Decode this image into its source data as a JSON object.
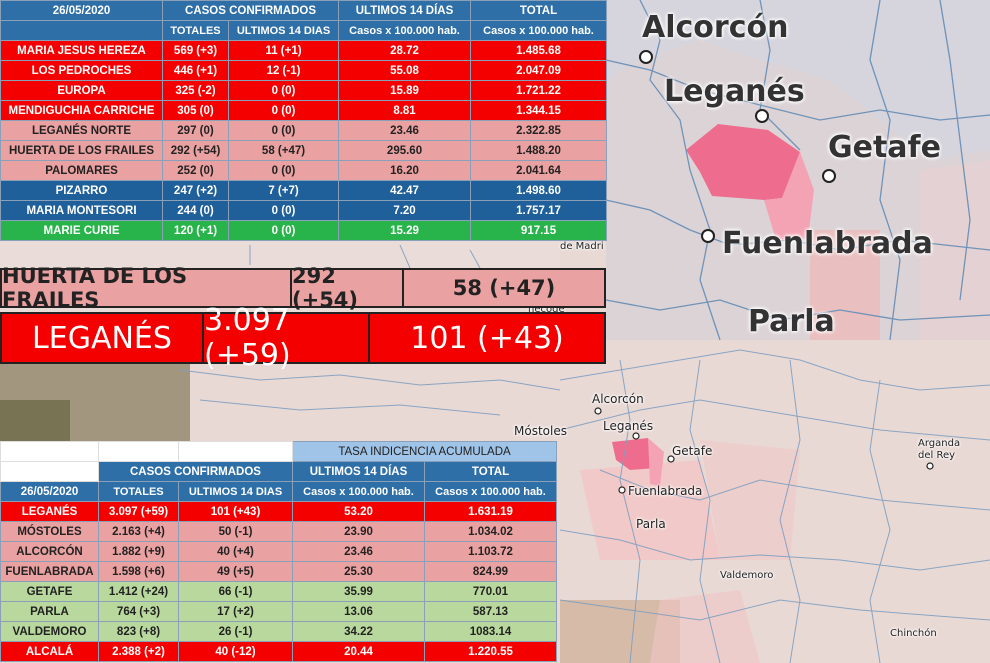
{
  "map_labels": {
    "alcorcon_big": "Alcorcón",
    "leganes_big": "Leganés",
    "getafe_big": "Getafe",
    "fuenlabrada_big": "Fuenlabrada",
    "parla_big": "Parla",
    "alcorcon": "Alcorcón",
    "leganes": "Leganés",
    "mostoles": "Móstoles",
    "getafe": "Getafe",
    "fuenlabrada": "Fuenlabrada",
    "parla": "Parla",
    "arganda": "Arganda del Rey",
    "valdemoro": "Valdemoro",
    "chinchon": "Chinchón",
    "madrid_fragment": "de Madri",
    "partial_fragment": "necode"
  },
  "top_table": {
    "date": "26/05/2020",
    "group1": "CASOS CONFIRMADOS",
    "group2": "ULTIMOS 14 DÍAS",
    "group3": "TOTAL",
    "sub1": "TOTALES",
    "sub2": "ULTIMOS 14 DIAS",
    "sub3": "Casos x 100.000 hab.",
    "sub4": "Casos x 100.000 hab.",
    "rows": [
      {
        "name": "MARIA JESUS HEREZA",
        "totales": "569 (+3)",
        "u14": "11 (+1)",
        "c14": "28.72",
        "total": "1.485.68",
        "style": "red"
      },
      {
        "name": "LOS PEDROCHES",
        "totales": "446 (+1)",
        "u14": "12 (-1)",
        "c14": "55.08",
        "total": "2.047.09",
        "style": "red"
      },
      {
        "name": "EUROPA",
        "totales": "325 (-2)",
        "u14": "0 (0)",
        "c14": "15.89",
        "total": "1.721.22",
        "style": "red"
      },
      {
        "name": "MENDIGUCHIA CARRICHE",
        "totales": "305 (0)",
        "u14": "0 (0)",
        "c14": "8.81",
        "total": "1.344.15",
        "style": "red"
      },
      {
        "name": "LEGANÉS NORTE",
        "totales": "297 (0)",
        "u14": "0 (0)",
        "c14": "23.46",
        "total": "2.322.85",
        "style": "pink"
      },
      {
        "name": "HUERTA DE LOS FRAILES",
        "totales": "292 (+54)",
        "u14": "58 (+47)",
        "c14": "295.60",
        "total": "1.488.20",
        "style": "pink"
      },
      {
        "name": "PALOMARES",
        "totales": "252 (0)",
        "u14": "0 (0)",
        "c14": "16.20",
        "total": "2.041.64",
        "style": "pink"
      },
      {
        "name": "PIZARRO",
        "totales": "247 (+2)",
        "u14": "7 (+7)",
        "c14": "42.47",
        "total": "1.498.60",
        "style": "blue"
      },
      {
        "name": "MARIA MONTESORI",
        "totales": "244 (0)",
        "u14": "0 (0)",
        "c14": "7.20",
        "total": "1.757.17",
        "style": "blue"
      },
      {
        "name": "MARIE CURIE",
        "totales": "120 (+1)",
        "u14": "0 (0)",
        "c14": "15.29",
        "total": "917.15",
        "style": "green"
      }
    ]
  },
  "highlight_huerta": {
    "name": "HUERTA DE LOS FRAILES",
    "totales": "292 (+54)",
    "u14": "58 (+47)"
  },
  "highlight_leganes": {
    "name": "LEGANÉS",
    "totales": "3.097 (+59)",
    "u14": "101 (+43)"
  },
  "bottom_table": {
    "tasa": "TASA INDICENCIA ACUMULADA",
    "date": "26/05/2020",
    "group1": "CASOS CONFIRMADOS",
    "group2": "ULTIMOS 14 DÍAS",
    "group3": "TOTAL",
    "sub1": "TOTALES",
    "sub2": "ULTIMOS 14 DIAS",
    "sub3": "Casos x 100.000 hab.",
    "sub4": "Casos x 100.000 hab.",
    "rows": [
      {
        "name": "LEGANÉS",
        "totales": "3.097 (+59)",
        "u14": "101 (+43)",
        "c14": "53.20",
        "total": "1.631.19",
        "style": "red"
      },
      {
        "name": "MÓSTOLES",
        "totales": "2.163 (+4)",
        "u14": "50 (-1)",
        "c14": "23.90",
        "total": "1.034.02",
        "style": "pink"
      },
      {
        "name": "ALCORCÓN",
        "totales": "1.882 (+9)",
        "u14": "40 (+4)",
        "c14": "23.46",
        "total": "1.103.72",
        "style": "pink"
      },
      {
        "name": "FUENLABRADA",
        "totales": "1.598 (+6)",
        "u14": "49 (+5)",
        "c14": "25.30",
        "total": "824.99",
        "style": "pink"
      },
      {
        "name": "GETAFE",
        "totales": "1.412 (+24)",
        "u14": "66 (-1)",
        "c14": "35.99",
        "total": "770.01",
        "style": "lgreen"
      },
      {
        "name": "PARLA",
        "totales": "764 (+3)",
        "u14": "17 (+2)",
        "c14": "13.06",
        "total": "587.13",
        "style": "lgreen"
      },
      {
        "name": "VALDEMORO",
        "totales": "823 (+8)",
        "u14": "26 (-1)",
        "c14": "34.22",
        "total": "1083.14",
        "style": "lgreen"
      },
      {
        "name": "ALCALÁ",
        "totales": "2.388 (+2)",
        "u14": "40 (-12)",
        "c14": "20.44",
        "total": "1.220.55",
        "style": "red"
      }
    ]
  }
}
